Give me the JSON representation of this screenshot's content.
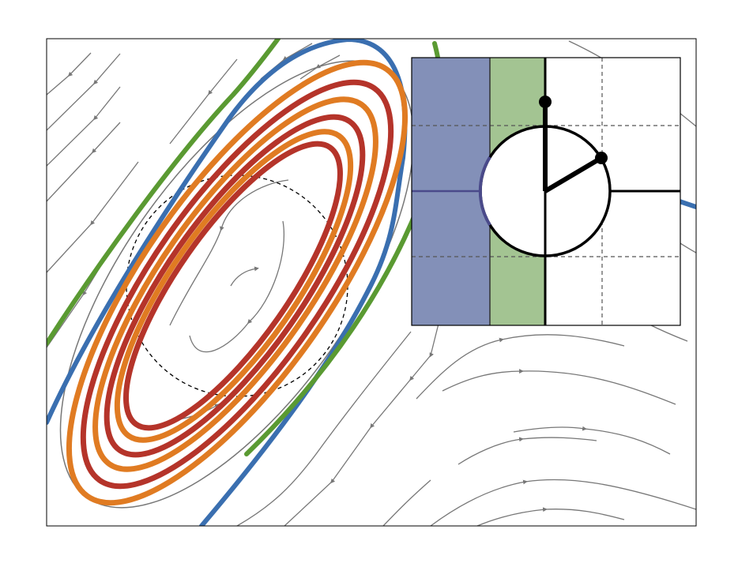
{
  "figure": {
    "background": "#ffffff",
    "frame_color": "#000000",
    "streamline_color": "#777777",
    "dashed_circle_color": "#000000"
  },
  "trajectories": [
    {
      "name": "",
      "color": "#3a6fb0",
      "kind": "outer-orbit"
    },
    {
      "name": "",
      "color": "#5a9a32",
      "kind": "outer-orbit"
    },
    {
      "name": "",
      "color": "#e07b22",
      "kind": "limit-cycle-family"
    },
    {
      "name": "",
      "color": "#b5342a",
      "kind": "limit-cycle-family"
    }
  ],
  "inset": {
    "regions": [
      {
        "name": "",
        "color": "#8390b8"
      },
      {
        "name": "",
        "color": "#a3c492"
      },
      {
        "name": "",
        "color": "#ffffff"
      }
    ],
    "grid_style": "dashed",
    "circle_color": "#000000",
    "boundary_color": "#4a4a8a",
    "markers": "filled-dots"
  }
}
